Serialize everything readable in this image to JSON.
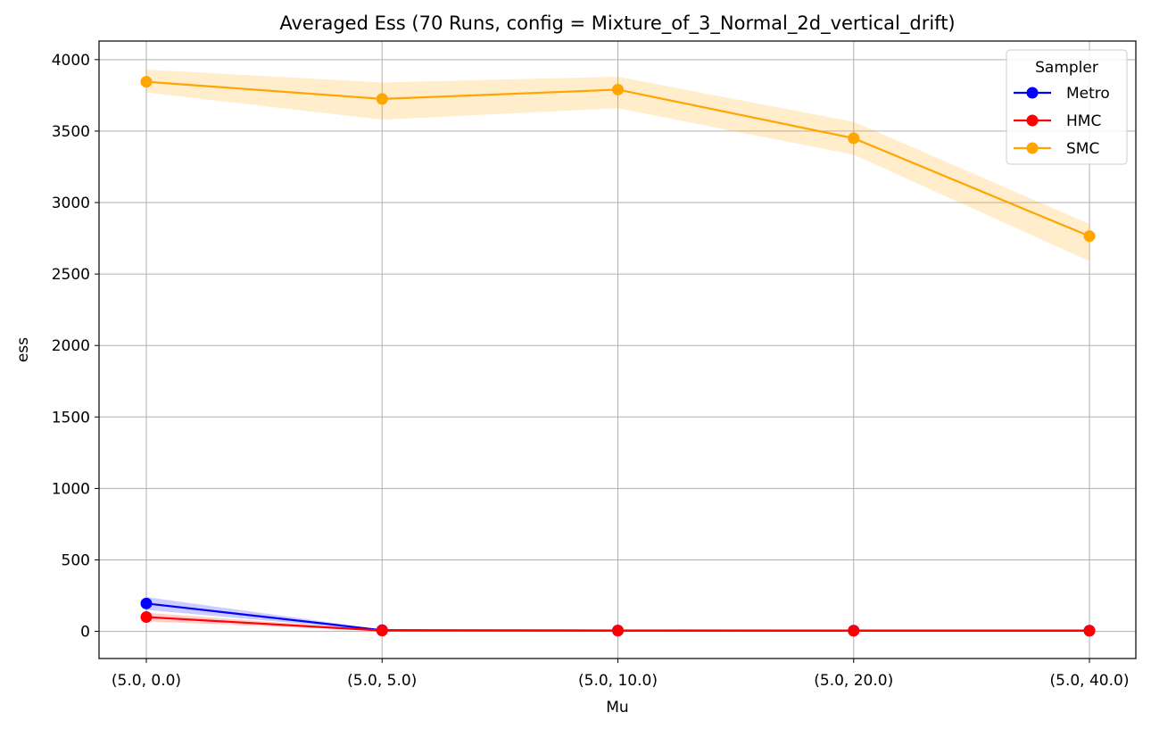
{
  "chart_data": {
    "type": "line",
    "title": "Averaged Ess (70 Runs, config = Mixture_of_3_Normal_2d_vertical_drift)",
    "xlabel": "Mu",
    "ylabel": "ess",
    "categories": [
      "(5.0, 0.0)",
      "(5.0, 5.0)",
      "(5.0, 10.0)",
      "(5.0, 20.0)",
      "(5.0, 40.0)"
    ],
    "ylim": [
      -190,
      4130
    ],
    "yticks": [
      0,
      500,
      1000,
      1500,
      2000,
      2500,
      3000,
      3500,
      4000
    ],
    "grid": true,
    "legend": {
      "title": "Sampler",
      "position": "top-right"
    },
    "series": [
      {
        "name": "Metro",
        "color": "#0000ff",
        "values": [
          195,
          8,
          6,
          5,
          5
        ],
        "lower": [
          150,
          4,
          3,
          3,
          3
        ],
        "upper": [
          240,
          12,
          9,
          8,
          8
        ]
      },
      {
        "name": "HMC",
        "color": "#ff0000",
        "values": [
          100,
          6,
          5,
          4,
          4
        ],
        "lower": [
          70,
          3,
          2,
          2,
          2
        ],
        "upper": [
          130,
          9,
          8,
          7,
          7
        ]
      },
      {
        "name": "SMC",
        "color": "#ffa500",
        "values": [
          3845,
          3725,
          3790,
          3450,
          2765
        ],
        "lower": [
          3770,
          3580,
          3660,
          3335,
          2590
        ],
        "upper": [
          3930,
          3840,
          3880,
          3565,
          2850
        ]
      }
    ]
  }
}
